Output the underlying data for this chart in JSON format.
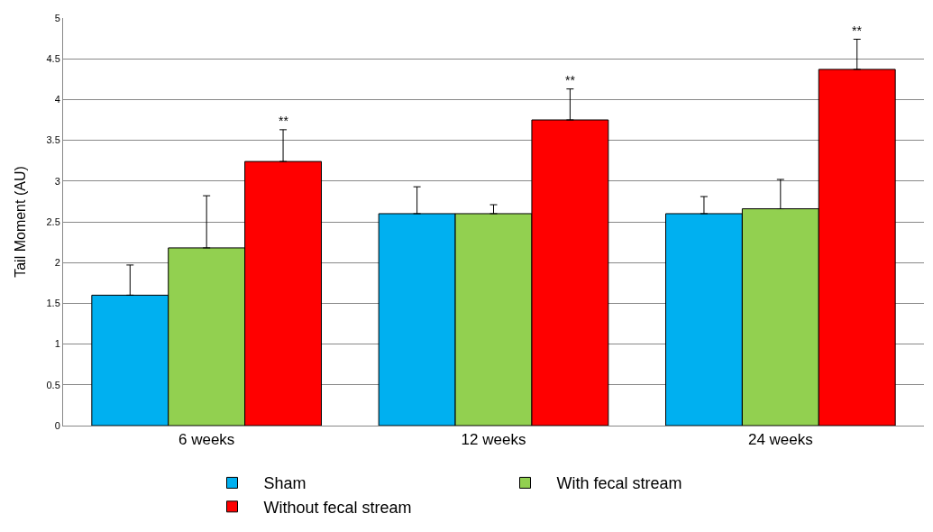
{
  "chart_data": {
    "type": "bar",
    "ylabel": "Tail Moment (AU)",
    "categories": [
      "6 weeks",
      "12 weeks",
      "24 weeks"
    ],
    "series": [
      {
        "name": "Sham",
        "color": "#00b0f0",
        "values": [
          1.6,
          2.6,
          2.6
        ],
        "errors": [
          [
            1.6,
            1.97
          ],
          [
            2.6,
            2.93
          ],
          [
            2.6,
            2.81
          ]
        ]
      },
      {
        "name": "With fecal stream",
        "color": "#92d050",
        "values": [
          2.18,
          2.6,
          2.66
        ],
        "errors": [
          [
            2.18,
            2.82
          ],
          [
            2.6,
            2.71
          ],
          [
            2.66,
            3.02
          ]
        ]
      },
      {
        "name": "Without fecal stream",
        "color": "#ff0000",
        "values": [
          3.24,
          3.75,
          4.37
        ],
        "errors": [
          [
            3.24,
            3.63
          ],
          [
            3.75,
            4.13
          ],
          [
            4.37,
            4.74
          ]
        ]
      }
    ],
    "ylim": [
      0,
      5
    ],
    "yticks": [
      0,
      0.5,
      1,
      1.5,
      2,
      2.5,
      3,
      3.5,
      4,
      4.5,
      5
    ],
    "grid": "y",
    "legend": "bottom",
    "annotations": [
      "**",
      "**",
      "**"
    ]
  }
}
